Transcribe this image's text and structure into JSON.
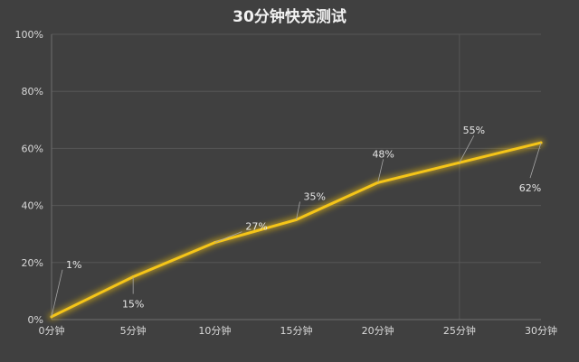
{
  "chart_data": {
    "type": "line",
    "title": "30分钟快充测试",
    "xlabel": "",
    "ylabel": "",
    "categories": [
      "0分钟",
      "5分钟",
      "10分钟",
      "15分钟",
      "20分钟",
      "25分钟",
      "30分钟"
    ],
    "series": [
      {
        "values": [
          1,
          15,
          27,
          35,
          48,
          55,
          62
        ],
        "data_labels": [
          "1%",
          "15%",
          "27%",
          "35%",
          "48%",
          "55%",
          "62%"
        ],
        "color": "#f5c518"
      }
    ],
    "ylim": [
      0,
      100
    ],
    "yticks": [
      0,
      20,
      40,
      60,
      80,
      100
    ],
    "ytick_labels": [
      "0%",
      "20%",
      "40%",
      "60%",
      "80%",
      "100%"
    ],
    "grid": true,
    "legend": "none",
    "colors": {
      "background": "#404040",
      "grid": "#565656",
      "axis": "#6e6e6e",
      "line": "#f5c518",
      "glow": "#f5c518",
      "text": "#d9d9d9",
      "title": "#f2f2f2",
      "leader": "#a6a6a6"
    }
  }
}
